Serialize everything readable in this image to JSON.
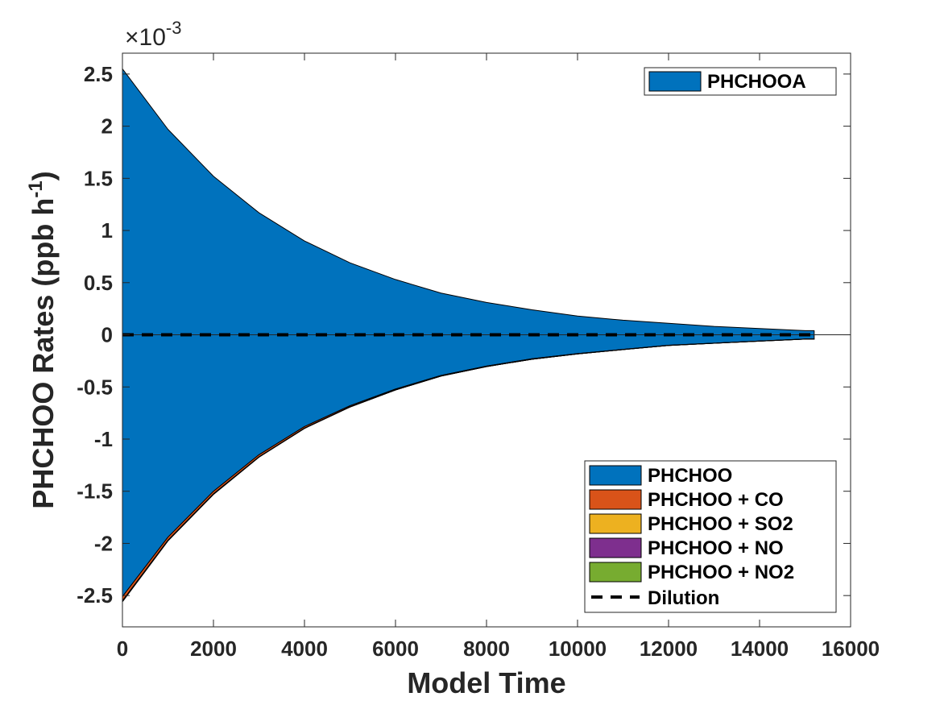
{
  "chart_data": {
    "type": "area",
    "xlabel": "Model Time",
    "ylabel": "PHCHOO Rates (ppb h",
    "ylabel_superscript": "-1",
    "ylabel_suffix": ")",
    "exponent_base": "×10",
    "exponent_power": "-3",
    "xlim": [
      0,
      16000
    ],
    "ylim": [
      -0.0028,
      0.0027
    ],
    "xticks": [
      "0",
      "2000",
      "4000",
      "6000",
      "8000",
      "10000",
      "12000",
      "14000",
      "16000"
    ],
    "xtick_values": [
      0,
      2000,
      4000,
      6000,
      8000,
      10000,
      12000,
      14000,
      16000
    ],
    "yticks": [
      "2.5",
      "2",
      "1.5",
      "1",
      "0.5",
      "0",
      "-0.5",
      "-1",
      "-1.5",
      "-2",
      "-2.5"
    ],
    "ytick_values": [
      0.0025,
      0.002,
      0.0015,
      0.001,
      0.0005,
      0,
      -0.0005,
      -0.001,
      -0.0015,
      -0.002,
      -0.0025
    ],
    "x": [
      0,
      1000,
      2000,
      3000,
      4000,
      5000,
      6000,
      7000,
      8000,
      9000,
      10000,
      11000,
      12000,
      13000,
      14000,
      15000,
      15200
    ],
    "production_series": [
      {
        "name": "PHCHOOA",
        "color": "#0072BD",
        "values": [
          0.00255,
          0.00197,
          0.00152,
          0.00117,
          0.0009,
          0.00069,
          0.00053,
          0.0004,
          0.00031,
          0.00024,
          0.00018,
          0.00014,
          0.00011,
          8e-05,
          6e-05,
          4e-05,
          4e-05
        ]
      }
    ],
    "loss_series": [
      {
        "name": "PHCHOO",
        "color": "#0072BD",
        "values": [
          -0.00251,
          -0.00194,
          -0.0015,
          -0.00115,
          -0.00088,
          -0.00068,
          -0.00052,
          -0.00039,
          -0.0003,
          -0.00023,
          -0.00018,
          -0.00014,
          -0.0001,
          -8e-05,
          -6e-05,
          -4e-05,
          -4e-05
        ]
      },
      {
        "name": "PHCHOO + CO",
        "color": "#D95319",
        "values": [
          -4e-05,
          -3e-05,
          -2.5e-05,
          -2e-05,
          -1.5e-05,
          -1e-05,
          -8e-06,
          -6e-06,
          -5e-06,
          -4e-06,
          -3e-06,
          -2e-06,
          -2e-06,
          -1e-06,
          -1e-06,
          -1e-06,
          -1e-06
        ]
      },
      {
        "name": "PHCHOO + SO2",
        "color": "#EDB120",
        "values": [
          -4e-06,
          -3e-06,
          -2e-06,
          -2e-06,
          -1e-06,
          -1e-06,
          -1e-06,
          0,
          0,
          0,
          0,
          0,
          0,
          0,
          0,
          0,
          0
        ]
      },
      {
        "name": "PHCHOO + NO",
        "color": "#7E2F8E",
        "values": [
          -3e-06,
          -2e-06,
          -2e-06,
          -1e-06,
          -1e-06,
          -1e-06,
          0,
          0,
          0,
          0,
          0,
          0,
          0,
          0,
          0,
          0,
          0
        ]
      },
      {
        "name": "PHCHOO + NO2",
        "color": "#77AC30",
        "values": [
          -3e-06,
          -2e-06,
          -2e-06,
          -1e-06,
          -1e-06,
          -1e-06,
          0,
          0,
          0,
          0,
          0,
          0,
          0,
          0,
          0,
          0,
          0
        ]
      }
    ],
    "dilution_series": {
      "name": "Dilution",
      "color": "#000000",
      "style": "dashed",
      "value": 0
    },
    "legend_top": {
      "placement": "top-right",
      "entries": [
        "PHCHOOA"
      ]
    },
    "legend_bottom": {
      "placement": "bottom-right",
      "entries": [
        "PHCHOO",
        "PHCHOO + CO",
        "PHCHOO + SO2",
        "PHCHOO + NO",
        "PHCHOO + NO2",
        "Dilution"
      ]
    },
    "grid": false
  }
}
